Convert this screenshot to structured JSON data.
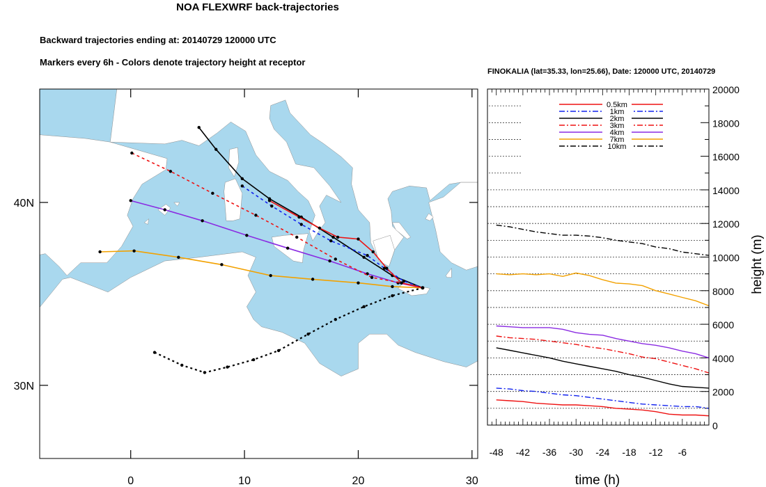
{
  "title": "NOA FLEXWRF back-trajectories",
  "subtitle1": "Backward trajectories ending at: 20140729  120000 UTC",
  "subtitle2": "Markers every 6h - Colors denote trajectory height at receptor",
  "colors": {
    "sea": "#a9d8ee",
    "land": "#ffffff",
    "coast": "#8c8c8c"
  },
  "chart_data": [
    {
      "type": "map",
      "map_xlim": [
        -8,
        30.5
      ],
      "map_ylim": [
        26,
        46.2
      ],
      "lon_ticks": [
        0,
        10,
        20,
        30
      ],
      "lon_tick_labels": [
        "0",
        "10",
        "20",
        "30"
      ],
      "lat_ticks": [
        30,
        40
      ],
      "lat_tick_labels": [
        "30N",
        "40N"
      ],
      "receptor": {
        "lon": 25.66,
        "lat": 35.33
      },
      "trajectories": [
        {
          "level": "10km",
          "color": "#000000",
          "dash": "dotted",
          "points": [
            [
              2.1,
              31.8
            ],
            [
              4.5,
              31.1
            ],
            [
              6.5,
              30.7
            ],
            [
              8.5,
              31.0
            ],
            [
              10.8,
              31.4
            ],
            [
              13,
              31.9
            ],
            [
              15.6,
              32.8
            ],
            [
              18,
              33.6
            ],
            [
              20.5,
              34.3
            ],
            [
              23,
              34.9
            ],
            [
              25.66,
              35.33
            ]
          ]
        },
        {
          "level": "7km",
          "color": "#f2a100",
          "dash": "solid",
          "points": [
            [
              -2.7,
              37.3
            ],
            [
              0.3,
              37.35
            ],
            [
              4.2,
              37.0
            ],
            [
              8.0,
              36.6
            ],
            [
              12.3,
              36.0
            ],
            [
              16.0,
              35.8
            ],
            [
              20.0,
              35.6
            ],
            [
              23.0,
              35.4
            ],
            [
              25.66,
              35.33
            ]
          ]
        },
        {
          "level": "4km",
          "color": "#8a2be2",
          "dash": "solid",
          "points": [
            [
              0,
              40.1
            ],
            [
              3,
              39.6
            ],
            [
              6.3,
              39.0
            ],
            [
              10.2,
              38.2
            ],
            [
              13.8,
              37.5
            ],
            [
              17.5,
              36.8
            ],
            [
              20.8,
              36.1
            ],
            [
              23.5,
              35.6
            ],
            [
              25.66,
              35.33
            ]
          ]
        },
        {
          "level": "3km",
          "color": "#ee1111",
          "dash": "dashed",
          "points": [
            [
              0.1,
              42.7
            ],
            [
              3.5,
              41.7
            ],
            [
              7.2,
              40.5
            ],
            [
              11,
              39.3
            ],
            [
              14.6,
              38.1
            ],
            [
              18,
              36.9
            ],
            [
              21.2,
              35.9
            ],
            [
              23.8,
              35.6
            ],
            [
              25.66,
              35.33
            ]
          ]
        },
        {
          "level": "2km",
          "color": "#000000",
          "dash": "solid",
          "points": [
            [
              6,
              44.1
            ],
            [
              7.5,
              42.9
            ],
            [
              9.8,
              41.3
            ],
            [
              12.2,
              40.2
            ],
            [
              15.0,
              39.2
            ],
            [
              17.8,
              38.1
            ],
            [
              20.5,
              37.0
            ],
            [
              23.0,
              36.0
            ],
            [
              25.66,
              35.33
            ]
          ]
        },
        {
          "level": "1km",
          "color": "#1122ee",
          "dash": "dashed",
          "points": [
            [
              9.8,
              40.9
            ],
            [
              12.4,
              39.8
            ],
            [
              15,
              38.8
            ],
            [
              17.6,
              37.9
            ],
            [
              20.8,
              37.1
            ],
            [
              22.3,
              36.4
            ],
            [
              24.0,
              35.7
            ],
            [
              25.66,
              35.33
            ]
          ]
        },
        {
          "level": "0.5km",
          "color": "#ee1111",
          "dash": "solid",
          "points": [
            [
              12.2,
              40.1
            ],
            [
              14.8,
              39.2
            ],
            [
              16.6,
              38.6
            ],
            [
              18.2,
              38.1
            ],
            [
              20.0,
              38.0
            ],
            [
              21.3,
              37.3
            ],
            [
              22.5,
              36.4
            ],
            [
              23.8,
              35.6
            ],
            [
              25.66,
              35.33
            ]
          ]
        }
      ]
    },
    {
      "type": "line",
      "title": "FINOKALIA (lat=35.33,  lon=25.66), Date: 120000 UTC, 20140729",
      "xlabel": "time (h)",
      "ylabel": "height (m)",
      "xlim": [
        -50,
        0
      ],
      "ylim": [
        0,
        20000
      ],
      "x_ticks": [
        -48,
        -42,
        -36,
        -30,
        -24,
        -18,
        -12,
        -6
      ],
      "x_tick_labels": [
        "-48",
        "-42",
        "-36",
        "-30",
        "-24",
        "-18",
        "-12",
        "-6"
      ],
      "y_ticks": [
        0,
        2000,
        4000,
        6000,
        8000,
        10000,
        12000,
        14000,
        16000,
        18000,
        20000
      ],
      "y_tick_labels": [
        "0",
        "2000",
        "4000",
        "6000",
        "8000",
        "10000",
        "12000",
        "14000",
        "16000",
        "18000",
        "20000"
      ],
      "x": [
        -48,
        -45,
        -42,
        -39,
        -36,
        -33,
        -30,
        -27,
        -24,
        -21,
        -18,
        -15,
        -12,
        -9,
        -6,
        -3,
        0
      ],
      "series": [
        {
          "name": "10km",
          "color": "#000000",
          "dash": "8,3,2,3",
          "values": [
            11900,
            11800,
            11650,
            11500,
            11400,
            11300,
            11300,
            11250,
            11150,
            11000,
            10900,
            10800,
            10600,
            10500,
            10300,
            10200,
            10100
          ]
        },
        {
          "name": "7km",
          "color": "#f2a100",
          "dash": "",
          "values": [
            9000,
            8950,
            9000,
            8950,
            9000,
            8850,
            9050,
            8900,
            8650,
            8450,
            8400,
            8300,
            8000,
            7800,
            7600,
            7400,
            7100
          ]
        },
        {
          "name": "4km",
          "color": "#8a2be2",
          "dash": "",
          "values": [
            5900,
            5850,
            5800,
            5800,
            5800,
            5700,
            5500,
            5400,
            5350,
            5150,
            5000,
            4850,
            4750,
            4600,
            4400,
            4250,
            4000
          ]
        },
        {
          "name": "3km",
          "color": "#ee1111",
          "dash": "8,3,2,3",
          "values": [
            5300,
            5200,
            5150,
            5100,
            5000,
            4900,
            4800,
            4650,
            4550,
            4400,
            4250,
            4050,
            3950,
            3750,
            3550,
            3350,
            3100
          ]
        },
        {
          "name": "2km",
          "color": "#000000",
          "dash": "",
          "values": [
            4600,
            4450,
            4300,
            4150,
            4000,
            3800,
            3650,
            3500,
            3350,
            3200,
            3000,
            2850,
            2650,
            2450,
            2300,
            2250,
            2200
          ]
        },
        {
          "name": "1km",
          "color": "#1122ee",
          "dash": "8,3,2,3",
          "values": [
            2200,
            2150,
            2050,
            2000,
            1900,
            1800,
            1750,
            1650,
            1550,
            1450,
            1350,
            1250,
            1200,
            1150,
            1100,
            1100,
            1000
          ]
        },
        {
          "name": "0.5km",
          "color": "#ee1111",
          "dash": "",
          "values": [
            1500,
            1450,
            1400,
            1300,
            1250,
            1200,
            1200,
            1150,
            1100,
            1000,
            950,
            900,
            800,
            650,
            600,
            600,
            550
          ]
        }
      ]
    }
  ]
}
